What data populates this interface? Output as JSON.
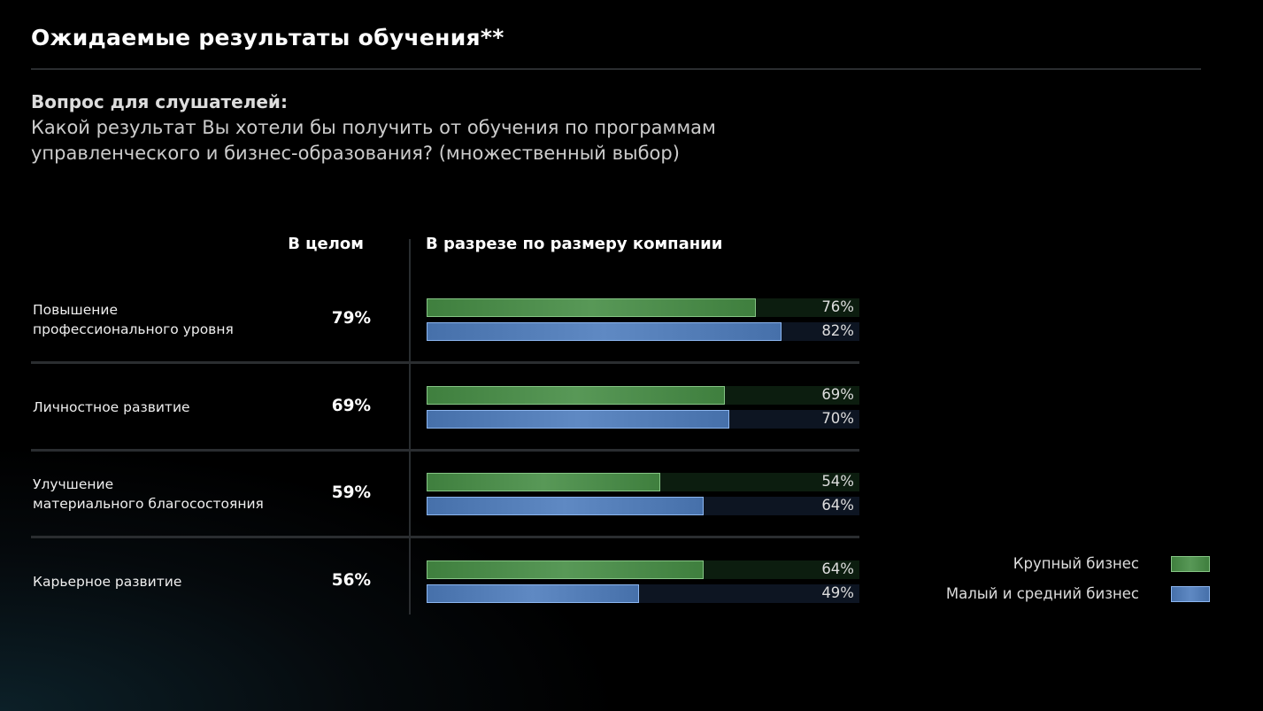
{
  "header": {
    "title": "Ожидаемые результаты обучения**"
  },
  "question": {
    "label": "Вопрос для слушателей:",
    "text": "Какой результат Вы хотели бы получить от обучения по программам\nуправленческого и бизнес-образования? (множественный выбор)"
  },
  "chart_data": {
    "type": "bar",
    "orientation": "horizontal",
    "overall_header": "В целом",
    "breakdown_header": "В разрезе по размеру компании",
    "categories": [
      "Повышение\nпрофессионального уровня",
      "Личностное развитие",
      "Улучшение\nматериального благосостояния",
      "Карьерное развитие"
    ],
    "overall": {
      "values": [
        79,
        69,
        59,
        56
      ],
      "value_labels": [
        "79%",
        "69%",
        "59%",
        "56%"
      ]
    },
    "series": [
      {
        "name": "Крупный бизнес",
        "color": "#3f7f3e",
        "values": [
          76,
          69,
          54,
          64
        ],
        "value_labels": [
          "76%",
          "69%",
          "54%",
          "64%"
        ]
      },
      {
        "name": "Малый и средний бизнес",
        "color": "#4670aa",
        "values": [
          82,
          70,
          64,
          49
        ],
        "value_labels": [
          "82%",
          "70%",
          "64%",
          "49%"
        ]
      }
    ],
    "xlim": [
      0,
      100
    ],
    "legend": "right"
  }
}
